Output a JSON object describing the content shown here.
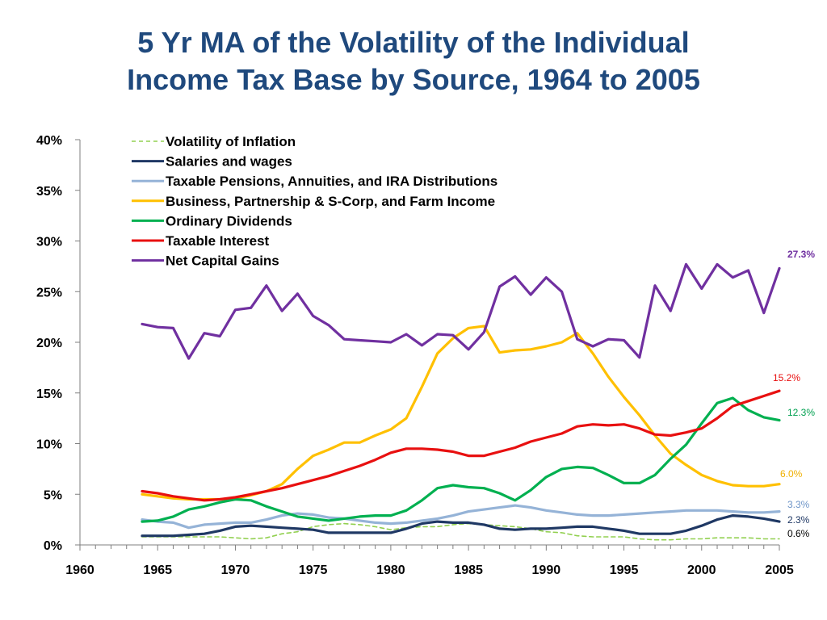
{
  "title": {
    "line1": "5 Yr MA of the Volatility of the Individual",
    "line2": "Income Tax Base by Source, 1964 to 2005"
  },
  "chart_data": {
    "type": "line",
    "title": "5 Yr MA of the Volatility of the Individual Income Tax Base by Source, 1964 to 2005",
    "xlabel": "",
    "ylabel": "",
    "xlim": [
      1960,
      2005
    ],
    "ylim": [
      0,
      40
    ],
    "x_ticks": [
      "1960",
      "1965",
      "1970",
      "1975",
      "1980",
      "1985",
      "1990",
      "1995",
      "2000",
      "2005"
    ],
    "y_ticks": [
      "0%",
      "5%",
      "10%",
      "15%",
      "20%",
      "25%",
      "30%",
      "35%",
      "40%"
    ],
    "grid": false,
    "legend_position": "top-left",
    "x": [
      1964,
      1965,
      1966,
      1967,
      1968,
      1969,
      1970,
      1971,
      1972,
      1973,
      1974,
      1975,
      1976,
      1977,
      1978,
      1979,
      1980,
      1981,
      1982,
      1983,
      1984,
      1985,
      1986,
      1987,
      1988,
      1989,
      1990,
      1991,
      1992,
      1993,
      1994,
      1995,
      1996,
      1997,
      1998,
      1999,
      2000,
      2001,
      2002,
      2003,
      2004,
      2005
    ],
    "series": [
      {
        "name": "Volatility of Inflation",
        "color": "#92D050",
        "dashed": true,
        "end_label": "0.6%",
        "end_label_color": "#000000",
        "values": [
          0.8,
          0.8,
          0.8,
          0.8,
          0.8,
          0.8,
          0.7,
          0.6,
          0.7,
          1.1,
          1.3,
          1.8,
          2.0,
          2.1,
          2.0,
          1.8,
          1.5,
          1.7,
          1.8,
          1.8,
          2.0,
          2.1,
          2.0,
          1.9,
          1.8,
          1.6,
          1.3,
          1.2,
          0.9,
          0.8,
          0.8,
          0.8,
          0.6,
          0.5,
          0.5,
          0.6,
          0.6,
          0.7,
          0.7,
          0.7,
          0.6,
          0.6
        ]
      },
      {
        "name": "Salaries and wages",
        "color": "#1F3864",
        "dashed": false,
        "end_label": "2.3%",
        "end_label_color": "#1F3864",
        "values": [
          0.9,
          0.9,
          0.9,
          1.0,
          1.1,
          1.4,
          1.8,
          1.9,
          1.8,
          1.7,
          1.6,
          1.5,
          1.2,
          1.2,
          1.2,
          1.2,
          1.2,
          1.6,
          2.1,
          2.3,
          2.2,
          2.2,
          2.0,
          1.6,
          1.5,
          1.6,
          1.6,
          1.7,
          1.8,
          1.8,
          1.6,
          1.4,
          1.1,
          1.1,
          1.1,
          1.4,
          1.9,
          2.5,
          2.9,
          2.8,
          2.6,
          2.3
        ]
      },
      {
        "name": "Taxable Pensions, Annuities, and IRA Distributions",
        "color": "#95B3D7",
        "dashed": false,
        "end_label": "3.3%",
        "end_label_color": "#6E95C8",
        "values": [
          2.5,
          2.3,
          2.2,
          1.7,
          2.0,
          2.1,
          2.2,
          2.2,
          2.5,
          2.9,
          3.1,
          3.0,
          2.7,
          2.6,
          2.4,
          2.2,
          2.1,
          2.2,
          2.4,
          2.6,
          2.9,
          3.3,
          3.5,
          3.7,
          3.9,
          3.7,
          3.4,
          3.2,
          3.0,
          2.9,
          2.9,
          3.0,
          3.1,
          3.2,
          3.3,
          3.4,
          3.4,
          3.4,
          3.3,
          3.2,
          3.2,
          3.3
        ]
      },
      {
        "name": "Business, Partnership & S-Corp, and Farm Income",
        "color": "#FFC000",
        "dashed": false,
        "end_label": "6.0%",
        "end_label_color": "#F0B000",
        "values": [
          5.0,
          4.8,
          4.6,
          4.5,
          4.5,
          4.5,
          4.6,
          4.9,
          5.3,
          6.0,
          7.5,
          8.8,
          9.4,
          10.1,
          10.1,
          10.8,
          11.4,
          12.5,
          15.6,
          18.9,
          20.4,
          21.4,
          21.6,
          19.0,
          19.2,
          19.3,
          19.6,
          20.0,
          20.9,
          18.9,
          16.6,
          14.6,
          12.8,
          10.8,
          9.0,
          7.9,
          6.9,
          6.3,
          5.9,
          5.8,
          5.8,
          6.0
        ]
      },
      {
        "name": "Ordinary Dividends",
        "color": "#00B050",
        "dashed": false,
        "end_label": "12.3%",
        "end_label_color": "#00A050",
        "values": [
          2.3,
          2.4,
          2.8,
          3.5,
          3.8,
          4.2,
          4.5,
          4.4,
          3.8,
          3.3,
          2.8,
          2.6,
          2.4,
          2.6,
          2.8,
          2.9,
          2.9,
          3.4,
          4.4,
          5.6,
          5.9,
          5.7,
          5.6,
          5.1,
          4.4,
          5.4,
          6.7,
          7.5,
          7.7,
          7.6,
          6.9,
          6.1,
          6.1,
          6.9,
          8.5,
          9.9,
          12.0,
          14.0,
          14.5,
          13.3,
          12.6,
          12.3
        ]
      },
      {
        "name": "Taxable Interest",
        "color": "#E81010",
        "dashed": false,
        "end_label": "15.2%",
        "end_label_color": "#E81010",
        "values": [
          5.3,
          5.1,
          4.8,
          4.6,
          4.4,
          4.5,
          4.7,
          5.0,
          5.3,
          5.6,
          6.0,
          6.4,
          6.8,
          7.3,
          7.8,
          8.4,
          9.1,
          9.5,
          9.5,
          9.4,
          9.2,
          8.8,
          8.8,
          9.2,
          9.6,
          10.2,
          10.6,
          11.0,
          11.7,
          11.9,
          11.8,
          11.9,
          11.5,
          10.9,
          10.8,
          11.1,
          11.5,
          12.5,
          13.7,
          14.2,
          14.7,
          15.2
        ]
      },
      {
        "name": "Net Capital Gains",
        "color": "#7030A0",
        "dashed": false,
        "end_label": "27.3%",
        "end_label_color": "#7030A0",
        "values": [
          21.8,
          21.5,
          21.4,
          18.4,
          20.9,
          20.6,
          23.2,
          23.4,
          25.6,
          23.1,
          24.8,
          22.6,
          21.7,
          20.3,
          20.2,
          20.1,
          20.0,
          20.8,
          19.7,
          20.8,
          20.7,
          19.3,
          21.0,
          25.5,
          26.5,
          24.7,
          26.4,
          25.0,
          20.3,
          19.6,
          20.3,
          20.2,
          18.5,
          25.6,
          23.1,
          27.7,
          25.3,
          27.7,
          26.4,
          27.1,
          22.9,
          27.3
        ]
      }
    ]
  }
}
